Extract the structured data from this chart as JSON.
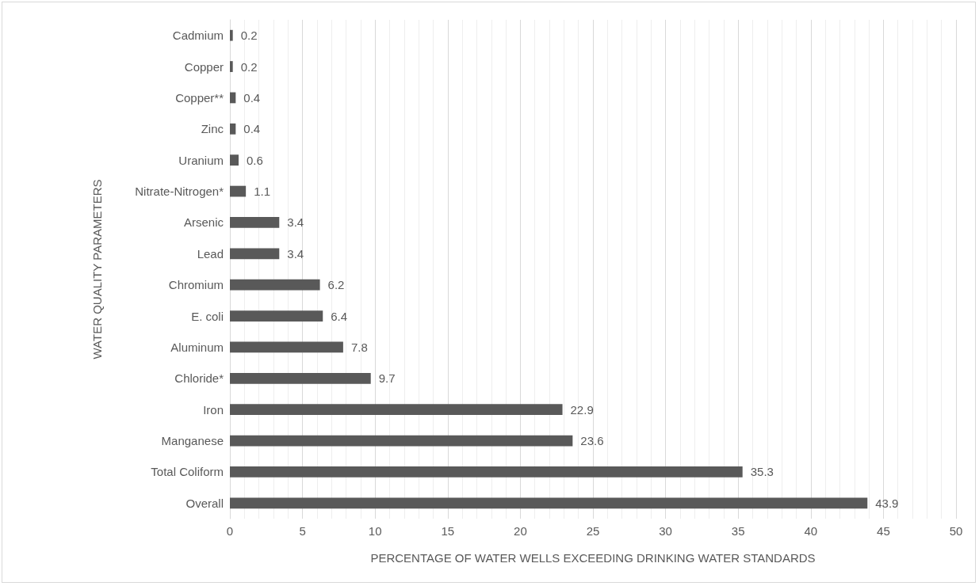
{
  "chart_data": {
    "type": "bar",
    "orientation": "horizontal",
    "xlabel": "PERCENTAGE OF WATER WELLS EXCEEDING DRINKING WATER STANDARDS",
    "ylabel": "WATER QUALITY PARAMETERS",
    "categories": [
      "Cadmium",
      "Copper",
      "Copper**",
      "Zinc",
      "Uranium",
      "Nitrate-Nitrogen*",
      "Arsenic",
      "Lead",
      "Chromium",
      "E. coli",
      "Aluminum",
      "Chloride*",
      "Iron",
      "Manganese",
      "Total Coliform",
      "Overall"
    ],
    "values": [
      0.2,
      0.2,
      0.4,
      0.4,
      0.6,
      1.1,
      3.4,
      3.4,
      6.2,
      6.4,
      7.8,
      9.7,
      22.9,
      23.6,
      35.3,
      43.9
    ],
    "color": "#595959",
    "xlim": [
      0,
      50
    ],
    "xticks": [
      0,
      5,
      10,
      15,
      20,
      25,
      30,
      35,
      40,
      45,
      50
    ],
    "grid": "x",
    "data_labels": true
  }
}
